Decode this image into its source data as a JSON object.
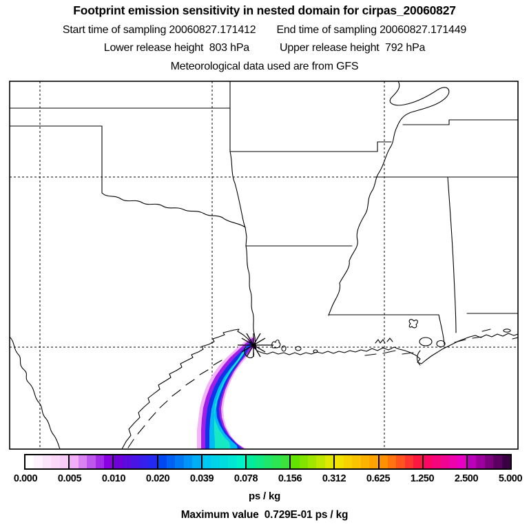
{
  "header": {
    "title": "Footprint emission sensitivity in nested domain for cirpas_20060827",
    "start_time": "Start time of sampling 20060827.171412",
    "end_time": "End time of sampling 20060827.171449",
    "lower_release": "Lower release height  803 hPa",
    "upper_release": "Upper release height  792 hPa",
    "met_source": "Meteorological data used are from GFS"
  },
  "chart_data": {
    "type": "heatmap",
    "title": "Footprint emission sensitivity in nested domain for cirpas_20060827",
    "description": "Geographic map (south-central US: Texas, Oklahoma, Arkansas, Louisiana, Mississippi and Gulf coast) with dashed lat/lon gridlines, an asterisk receptor marker on the upper Texas coast, and a curved footprint-sensitivity plume extending southwest then south over the Gulf of Mexico. Plume core is cyan-turquoise (~0.02-0.08 ps/kg) with blue, violet and pale-pink fringes toward lower values.",
    "colorbar": {
      "unit": "ps / kg",
      "ticks": [
        "0.000",
        "0.005",
        "0.010",
        "0.020",
        "0.039",
        "0.078",
        "0.156",
        "0.312",
        "0.625",
        "1.250",
        "2.500",
        "5.000"
      ],
      "blocks": [
        {
          "from": "0.000",
          "to": "0.005",
          "start": "#FFFFFF",
          "end": "#F8CBF8"
        },
        {
          "from": "0.005",
          "to": "0.010",
          "start": "#F2AEF6",
          "end": "#8A00E0"
        },
        {
          "from": "0.010",
          "to": "0.020",
          "start": "#6F00D8",
          "end": "#2328F2"
        },
        {
          "from": "0.020",
          "to": "0.039",
          "start": "#0048F2",
          "end": "#00AEF8"
        },
        {
          "from": "0.039",
          "to": "0.078",
          "start": "#00C8F4",
          "end": "#00F2C8"
        },
        {
          "from": "0.078",
          "to": "0.156",
          "start": "#00EC9C",
          "end": "#3CE23C"
        },
        {
          "from": "0.156",
          "to": "0.312",
          "start": "#63E400",
          "end": "#DEE800"
        },
        {
          "from": "0.312",
          "to": "0.625",
          "start": "#F2E200",
          "end": "#FFA300"
        },
        {
          "from": "0.625",
          "to": "1.250",
          "start": "#FF9100",
          "end": "#FF173F"
        },
        {
          "from": "1.250",
          "to": "2.500",
          "start": "#FB0762",
          "end": "#E800C4"
        },
        {
          "from": "2.500",
          "to": "5.000",
          "start": "#BB00BB",
          "end": "#3B0043"
        }
      ]
    },
    "plume_layers": [
      {
        "name": "fringe-pale-pink",
        "color": "#F3B4F7"
      },
      {
        "name": "fringe-violet",
        "color": "#A21EE8"
      },
      {
        "name": "band-blue",
        "color": "#1430E8"
      },
      {
        "name": "band-cyan",
        "color": "#00BCF2"
      },
      {
        "name": "core-turquoise",
        "color": "#17E9C5"
      }
    ],
    "receptor_marker": "asterisk",
    "max_value": "0.729E-01",
    "max_value_label": "Maximum value  0.729E-01 ps / kg"
  },
  "footer": {
    "unit_label": "ps / kg",
    "max_label": "Maximum value  0.729E-01 ps / kg"
  }
}
